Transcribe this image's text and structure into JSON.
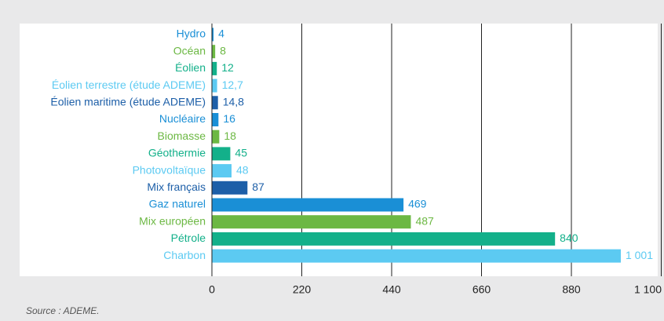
{
  "chart_data": {
    "type": "barh",
    "categories": [
      "Hydro",
      "Océan",
      "Éolien",
      "Éolien terrestre (étude ADEME)",
      "Éolien maritime (étude ADEME)",
      "Nucléaire",
      "Biomasse",
      "Géothermie",
      "Photovoltaïque",
      "Mix français",
      "Gaz naturel",
      "Mix européen",
      "Pétrole",
      "Charbon"
    ],
    "values": [
      4,
      8,
      12,
      12.7,
      14.8,
      16,
      18,
      45,
      48,
      87,
      469,
      487,
      840,
      1001
    ],
    "value_labels": [
      "4",
      "8",
      "12",
      "12,7",
      "14,8",
      "16",
      "18",
      "45",
      "48",
      "87",
      "469",
      "487",
      "840",
      "1 001"
    ],
    "colors": [
      "#1a8fd6",
      "#6cb843",
      "#13b08a",
      "#5ccaf2",
      "#1d5fa8",
      "#1a8fd6",
      "#6cb843",
      "#13b08a",
      "#5ccaf2",
      "#1d5fa8",
      "#1a8fd6",
      "#6cb843",
      "#13b08a",
      "#5ccaf2"
    ],
    "xlim": [
      0,
      1100
    ],
    "xticks": [
      0,
      220,
      440,
      660,
      880,
      {
        "value": 1100,
        "label": "1 100"
      }
    ],
    "grid": true,
    "source": "Source : ADEME."
  }
}
